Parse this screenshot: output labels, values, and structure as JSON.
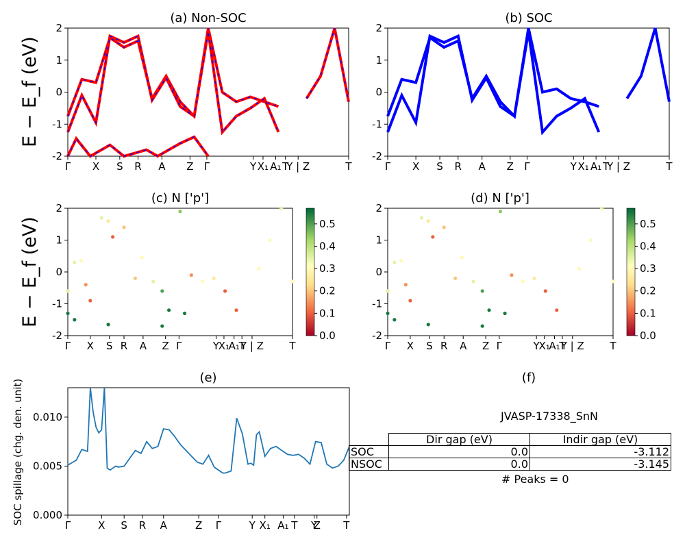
{
  "panels": {
    "a_title": "(a) Non-SOC",
    "b_title": "(b) SOC",
    "c_title": "(c)  N ['p']",
    "d_title": "(d) N ['p']",
    "e_title": "(e)",
    "f_title": "(f)"
  },
  "axes": {
    "band_ylabel": "E − E_f (eV)",
    "spillage_ylabel": "SOC spillage (chg. den. unit)"
  },
  "kpath_labels": [
    "Γ",
    "X",
    "S",
    "R",
    "A",
    "Z",
    "Γ",
    "Y",
    "X₁",
    "A₁",
    "T",
    "Y | Z",
    "T"
  ],
  "colorbar": {
    "ticks": [
      "0.0",
      "0.1",
      "0.2",
      "0.3",
      "0.4",
      "0.5"
    ],
    "cmap": "RdYlGn"
  },
  "colors": {
    "soc_blue": "#0000ff",
    "nonsoc_red": "#ff0000",
    "spillage_line": "#1f77b4"
  },
  "table": {
    "sample": "JVASP-17338_SnN",
    "headers": [
      "Dir gap (eV)",
      "Indir gap (eV)"
    ],
    "rows": [
      {
        "label": "SOC",
        "dir": "0.0",
        "indir": "-3.112"
      },
      {
        "label": "NSOC",
        "dir": "0.0",
        "indir": "-3.145"
      }
    ],
    "peaks": "# Peaks = 0"
  },
  "chart_data": [
    {
      "type": "line",
      "title": "(a) Non-SOC",
      "ylabel": "E − E_f (eV)",
      "ylim": [
        -2,
        2
      ],
      "yticks": [
        -2,
        -1,
        0,
        1,
        2
      ],
      "xticks": [
        "Γ",
        "X",
        "S",
        "R",
        "A",
        "Z",
        "Γ",
        "Y",
        "X₁",
        "A₁",
        "T",
        "Y | Z",
        "T"
      ],
      "series": [
        {
          "x": [
            0,
            0.05,
            0.1,
            0.15,
            0.2,
            0.25,
            0.3,
            0.35,
            0.4,
            0.45,
            0.5,
            0.55,
            0.6,
            0.65,
            0.7,
            0.75,
            0.8,
            0.85,
            0.9,
            0.95,
            1.0
          ],
          "y": [
            -0.75,
            0.4,
            0.3,
            1.7,
            1.4,
            1.6,
            -0.2,
            0.5,
            -0.3,
            -0.75,
            2.0,
            0.0,
            -0.3,
            -0.15,
            -0.3,
            -0.45,
            null,
            -0.2,
            0.5,
            2.0,
            -0.3
          ]
        },
        {
          "x": [
            0,
            0.05,
            0.1,
            0.15,
            0.2,
            0.25,
            0.3,
            0.35,
            0.4,
            0.45,
            0.5,
            0.55,
            0.6,
            0.65,
            0.7,
            0.75
          ],
          "y": [
            -1.25,
            -0.1,
            -0.95,
            1.75,
            1.55,
            1.75,
            -0.25,
            0.45,
            -0.45,
            -0.75,
            1.9,
            -1.25,
            -0.75,
            -0.5,
            -0.2,
            -1.25
          ]
        },
        {
          "x": [
            0,
            0.03,
            0.08,
            0.15,
            0.2,
            0.28,
            0.32,
            0.4,
            0.45,
            0.5
          ],
          "y": [
            -2.0,
            -1.45,
            -2.0,
            -1.65,
            -2.0,
            -1.8,
            -2.0,
            -1.6,
            -1.4,
            -2.0
          ]
        }
      ]
    },
    {
      "type": "line",
      "title": "(b) SOC",
      "ylim": [
        -2,
        2
      ],
      "yticks": [
        -2,
        -1,
        0,
        1,
        2
      ],
      "xticks": [
        "Γ",
        "X",
        "S",
        "R",
        "A",
        "Z",
        "Γ",
        "Y",
        "X₁",
        "A₁",
        "T",
        "Y | Z",
        "T"
      ],
      "series": [
        {
          "x": [
            0,
            0.05,
            0.1,
            0.15,
            0.2,
            0.25,
            0.3,
            0.35,
            0.4,
            0.45,
            0.5,
            0.55,
            0.6,
            0.65,
            0.7,
            0.75,
            0.8,
            0.85,
            0.9,
            0.95,
            1.0
          ],
          "y": [
            -0.75,
            0.4,
            0.3,
            1.7,
            1.4,
            1.6,
            -0.2,
            0.5,
            -0.3,
            -0.75,
            2.0,
            0.0,
            0.1,
            -0.2,
            -0.3,
            -0.45,
            null,
            -0.2,
            0.5,
            2.0,
            -0.3
          ]
        },
        {
          "x": [
            0,
            0.05,
            0.1,
            0.15,
            0.2,
            0.25,
            0.3,
            0.35,
            0.4,
            0.45,
            0.5,
            0.55,
            0.6,
            0.65,
            0.7,
            0.75
          ],
          "y": [
            -1.25,
            -0.1,
            -0.95,
            1.75,
            1.55,
            1.75,
            -0.25,
            0.45,
            -0.45,
            -0.75,
            1.9,
            -1.25,
            -0.75,
            -0.5,
            -0.2,
            -1.25
          ]
        }
      ]
    },
    {
      "type": "scatter",
      "title": "(c)  N ['p']",
      "ylabel": "E − E_f (eV)",
      "ylim": [
        -2,
        2
      ],
      "colorbar": {
        "min": 0.0,
        "max": 0.57,
        "ticks": [
          0.0,
          0.1,
          0.2,
          0.3,
          0.4,
          0.5
        ]
      },
      "points": [
        [
          0.0,
          -0.6,
          0.35
        ],
        [
          0.03,
          0.3,
          0.35
        ],
        [
          0.06,
          0.35,
          0.3
        ],
        [
          0.08,
          -0.4,
          0.15
        ],
        [
          0.1,
          -0.9,
          0.1
        ],
        [
          0.15,
          1.7,
          0.35
        ],
        [
          0.18,
          1.6,
          0.25
        ],
        [
          0.2,
          1.1,
          0.1
        ],
        [
          0.25,
          1.4,
          0.2
        ],
        [
          0.3,
          -0.2,
          0.2
        ],
        [
          0.33,
          0.45,
          0.3
        ],
        [
          0.38,
          -0.3,
          0.35
        ],
        [
          0.42,
          -0.6,
          0.5
        ],
        [
          0.45,
          -1.2,
          0.55
        ],
        [
          0.5,
          1.9,
          0.45
        ],
        [
          0.55,
          -0.1,
          0.15
        ],
        [
          0.6,
          -0.3,
          0.3
        ],
        [
          0.65,
          -0.2,
          0.25
        ],
        [
          0.7,
          -0.6,
          0.1
        ],
        [
          0.75,
          -1.2,
          0.1
        ],
        [
          0.85,
          0.1,
          0.3
        ],
        [
          0.9,
          1.0,
          0.3
        ],
        [
          0.95,
          2.0,
          0.35
        ],
        [
          1.0,
          -0.3,
          0.3
        ],
        [
          0.0,
          -1.3,
          0.55
        ],
        [
          0.03,
          -1.5,
          0.55
        ],
        [
          0.18,
          -1.65,
          0.55
        ],
        [
          0.42,
          -1.7,
          0.55
        ],
        [
          0.52,
          -1.3,
          0.55
        ]
      ]
    },
    {
      "type": "scatter",
      "title": "(d) N ['p']",
      "ylim": [
        -2,
        2
      ],
      "colorbar": {
        "min": 0.0,
        "max": 0.57,
        "ticks": [
          0.0,
          0.1,
          0.2,
          0.3,
          0.4,
          0.5
        ]
      },
      "points": [
        [
          0.0,
          -0.6,
          0.35
        ],
        [
          0.03,
          0.3,
          0.35
        ],
        [
          0.06,
          0.35,
          0.3
        ],
        [
          0.08,
          -0.4,
          0.15
        ],
        [
          0.1,
          -0.9,
          0.1
        ],
        [
          0.15,
          1.7,
          0.35
        ],
        [
          0.18,
          1.6,
          0.25
        ],
        [
          0.2,
          1.1,
          0.1
        ],
        [
          0.25,
          1.4,
          0.2
        ],
        [
          0.3,
          -0.2,
          0.2
        ],
        [
          0.33,
          0.45,
          0.3
        ],
        [
          0.38,
          -0.3,
          0.35
        ],
        [
          0.42,
          -0.6,
          0.5
        ],
        [
          0.45,
          -1.2,
          0.55
        ],
        [
          0.5,
          1.9,
          0.45
        ],
        [
          0.55,
          -0.1,
          0.15
        ],
        [
          0.6,
          -0.3,
          0.3
        ],
        [
          0.65,
          -0.2,
          0.25
        ],
        [
          0.7,
          -0.6,
          0.1
        ],
        [
          0.75,
          -1.2,
          0.1
        ],
        [
          0.85,
          0.1,
          0.3
        ],
        [
          0.9,
          1.0,
          0.3
        ],
        [
          0.95,
          2.0,
          0.35
        ],
        [
          1.0,
          -0.3,
          0.3
        ],
        [
          0.0,
          -1.3,
          0.55
        ],
        [
          0.03,
          -1.5,
          0.55
        ],
        [
          0.18,
          -1.65,
          0.55
        ],
        [
          0.42,
          -1.7,
          0.55
        ],
        [
          0.52,
          -1.3,
          0.55
        ]
      ]
    },
    {
      "type": "line",
      "title": "(e)",
      "ylabel": "SOC spillage (chg. den. unit)",
      "ylim": [
        0,
        0.013
      ],
      "yticks": [
        "0.000",
        "0.005",
        "0.010"
      ],
      "xticks": [
        "Γ",
        "X",
        "S",
        "R",
        "A",
        "Z",
        "Γ",
        "Y",
        "X₁",
        "A₁",
        "T",
        "Y",
        "Z",
        "T"
      ],
      "x": [
        0,
        0.03,
        0.05,
        0.07,
        0.08,
        0.09,
        0.1,
        0.11,
        0.12,
        0.13,
        0.14,
        0.15,
        0.16,
        0.17,
        0.18,
        0.2,
        0.22,
        0.24,
        0.26,
        0.28,
        0.3,
        0.32,
        0.34,
        0.36,
        0.38,
        0.4,
        0.42,
        0.44,
        0.46,
        0.48,
        0.5,
        0.52,
        0.54,
        0.55,
        0.56,
        0.58,
        0.6,
        0.62,
        0.64,
        0.65,
        0.66,
        0.67,
        0.68,
        0.7,
        0.72,
        0.74,
        0.76,
        0.78,
        0.8,
        0.82,
        0.84,
        0.86,
        0.88,
        0.9,
        0.92,
        0.94,
        0.96,
        0.98,
        1.0
      ],
      "y": [
        0.0051,
        0.0056,
        0.0067,
        0.0065,
        0.0132,
        0.0105,
        0.009,
        0.0084,
        0.0087,
        0.0134,
        0.0048,
        0.0046,
        0.0048,
        0.005,
        0.0049,
        0.005,
        0.0058,
        0.0066,
        0.0063,
        0.0075,
        0.0068,
        0.007,
        0.0088,
        0.0087,
        0.008,
        0.0072,
        0.0066,
        0.006,
        0.0054,
        0.0052,
        0.0061,
        0.0049,
        0.0045,
        0.0043,
        0.0043,
        0.0045,
        0.0099,
        0.0083,
        0.0052,
        0.0053,
        0.0051,
        0.0082,
        0.0085,
        0.006,
        0.0068,
        0.007,
        0.0066,
        0.0062,
        0.0061,
        0.0062,
        0.0058,
        0.0052,
        0.0075,
        0.0074,
        0.0052,
        0.0048,
        0.005,
        0.0056,
        0.007
      ]
    }
  ]
}
